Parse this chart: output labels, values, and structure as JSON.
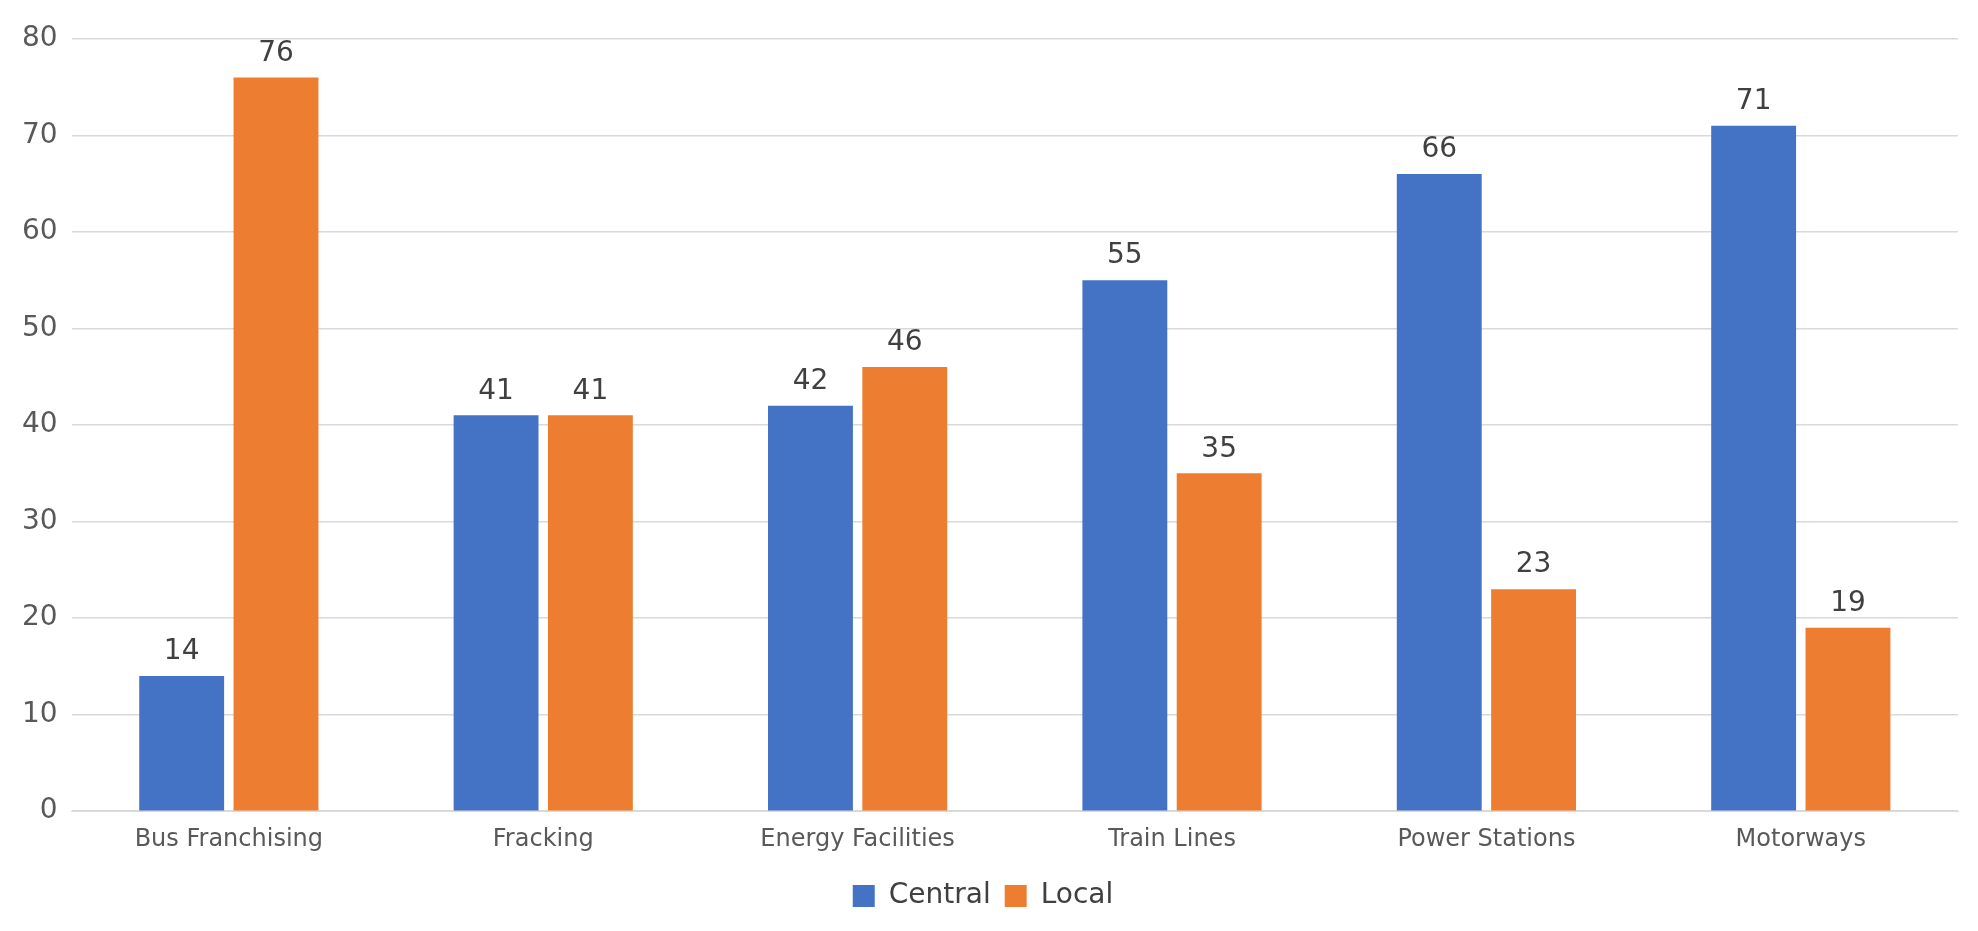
{
  "chart_data": {
    "type": "bar",
    "categories": [
      "Bus Franchising",
      "Fracking",
      "Energy Facilities",
      "Train Lines",
      "Power Stations",
      "Motorways"
    ],
    "series": [
      {
        "name": "Central",
        "color": "#4472c4",
        "values": [
          14,
          41,
          42,
          55,
          66,
          71
        ]
      },
      {
        "name": "Local",
        "color": "#ed7d31",
        "values": [
          76,
          41,
          46,
          35,
          23,
          19
        ]
      }
    ],
    "ylim": [
      0,
      80
    ],
    "yticks": [
      0,
      10,
      20,
      30,
      40,
      50,
      60,
      70,
      80
    ],
    "grid": "y",
    "legend": "bottom",
    "data_labels": true
  }
}
